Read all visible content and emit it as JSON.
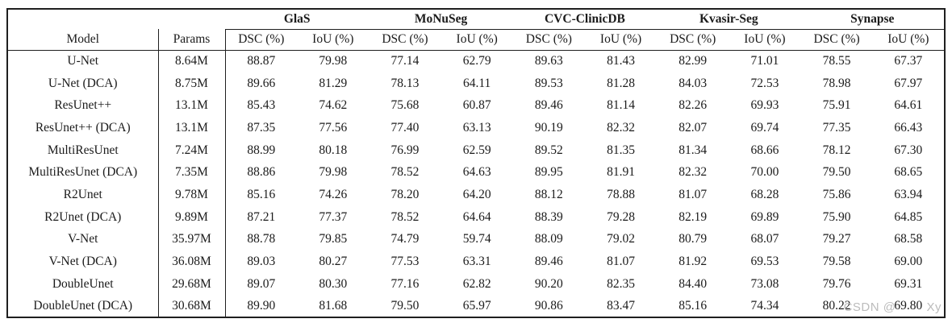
{
  "page": {
    "background": "#ffffff",
    "text_color": "#1b1b1b",
    "border_color": "#1f1f1f"
  },
  "table": {
    "corner_label": "",
    "groups": [
      "GlaS",
      "MoNuSeg",
      "CVC-ClinicDB",
      "Kvasir-Seg",
      "Synapse"
    ],
    "sub_headers": {
      "model": "Model",
      "params": "Params",
      "dsc": "DSC (%)",
      "iou": "IoU (%)"
    },
    "rows": [
      {
        "model": "U-Net",
        "bold_model": false,
        "params": "8.64M",
        "values": [
          "88.87",
          "79.98",
          "77.14",
          "62.79",
          "89.63",
          "81.43",
          "82.99",
          "71.01",
          "78.55",
          "67.37"
        ],
        "bold": [
          false,
          false,
          false,
          false,
          true,
          true,
          false,
          false,
          false,
          false
        ]
      },
      {
        "model": "U-Net (DCA)",
        "bold_model": true,
        "params": "8.75M",
        "values": [
          "89.66",
          "81.29",
          "78.13",
          "64.11",
          "89.53",
          "81.28",
          "84.03",
          "72.53",
          "78.98",
          "67.97"
        ],
        "bold": [
          true,
          true,
          true,
          true,
          false,
          false,
          true,
          true,
          true,
          true
        ]
      },
      {
        "model": "ResUnet++",
        "bold_model": false,
        "params": "13.1M",
        "values": [
          "85.43",
          "74.62",
          "75.68",
          "60.87",
          "89.46",
          "81.14",
          "82.26",
          "69.93",
          "75.91",
          "64.61"
        ],
        "bold": [
          false,
          false,
          false,
          false,
          false,
          false,
          true,
          true,
          false,
          false
        ]
      },
      {
        "model": "ResUnet++ (DCA)",
        "bold_model": true,
        "params": "13.1M",
        "values": [
          "87.35",
          "77.56",
          "77.40",
          "63.13",
          "90.19",
          "82.32",
          "82.07",
          "69.74",
          "77.35",
          "66.43"
        ],
        "bold": [
          true,
          true,
          true,
          true,
          true,
          true,
          false,
          false,
          true,
          true
        ]
      },
      {
        "model": "MultiResUnet",
        "bold_model": false,
        "params": "7.24M",
        "values": [
          "88.99",
          "80.18",
          "76.99",
          "62.59",
          "89.52",
          "81.35",
          "81.34",
          "68.66",
          "78.12",
          "67.30"
        ],
        "bold": [
          true,
          true,
          false,
          false,
          false,
          false,
          false,
          false,
          false,
          false
        ]
      },
      {
        "model": "MultiResUnet (DCA)",
        "bold_model": true,
        "params": "7.35M",
        "values": [
          "88.86",
          "79.98",
          "78.52",
          "64.63",
          "89.95",
          "81.91",
          "82.32",
          "70.00",
          "79.50",
          "68.65"
        ],
        "bold": [
          false,
          false,
          true,
          true,
          true,
          true,
          true,
          true,
          true,
          true
        ]
      },
      {
        "model": "R2Unet",
        "bold_model": false,
        "params": "9.78M",
        "values": [
          "85.16",
          "74.26",
          "78.20",
          "64.20",
          "88.12",
          "78.88",
          "81.07",
          "68.28",
          "75.86",
          "63.94"
        ],
        "bold": [
          false,
          false,
          false,
          false,
          false,
          false,
          false,
          false,
          false,
          false
        ]
      },
      {
        "model": "R2Unet (DCA)",
        "bold_model": true,
        "params": "9.89M",
        "values": [
          "87.21",
          "77.37",
          "78.52",
          "64.64",
          "88.39",
          "79.28",
          "82.19",
          "69.89",
          "75.90",
          "64.85"
        ],
        "bold": [
          true,
          true,
          true,
          true,
          true,
          true,
          true,
          true,
          true,
          true
        ]
      },
      {
        "model": "V-Net",
        "bold_model": false,
        "params": "35.97M",
        "values": [
          "88.78",
          "79.85",
          "74.79",
          "59.74",
          "88.09",
          "79.02",
          "80.79",
          "68.07",
          "79.27",
          "68.58"
        ],
        "bold": [
          false,
          false,
          false,
          false,
          false,
          false,
          false,
          false,
          false,
          false
        ]
      },
      {
        "model": "V-Net (DCA)",
        "bold_model": true,
        "params": "36.08M",
        "values": [
          "89.03",
          "80.27",
          "77.53",
          "63.31",
          "89.46",
          "81.07",
          "81.92",
          "69.53",
          "79.58",
          "69.00"
        ],
        "bold": [
          true,
          true,
          true,
          true,
          true,
          true,
          true,
          true,
          true,
          true
        ]
      },
      {
        "model": "DoubleUnet",
        "bold_model": false,
        "params": "29.68M",
        "values": [
          "89.07",
          "80.30",
          "77.16",
          "62.82",
          "90.20",
          "82.35",
          "84.40",
          "73.08",
          "79.76",
          "69.31"
        ],
        "bold": [
          false,
          false,
          false,
          false,
          false,
          false,
          false,
          false,
          false,
          false
        ]
      },
      {
        "model": "DoubleUnet (DCA)",
        "bold_model": true,
        "params": "30.68M",
        "values": [
          "89.90",
          "81.68",
          "79.50",
          "65.97",
          "90.86",
          "83.47",
          "85.16",
          "74.34",
          "80.22",
          "69.80"
        ],
        "bold": [
          true,
          true,
          true,
          true,
          true,
          true,
          true,
          true,
          true,
          true
        ]
      }
    ]
  },
  "watermark": {
    "prefix": "CSDN @",
    "suffix": "Xy",
    "color": "#bcbcbc"
  }
}
